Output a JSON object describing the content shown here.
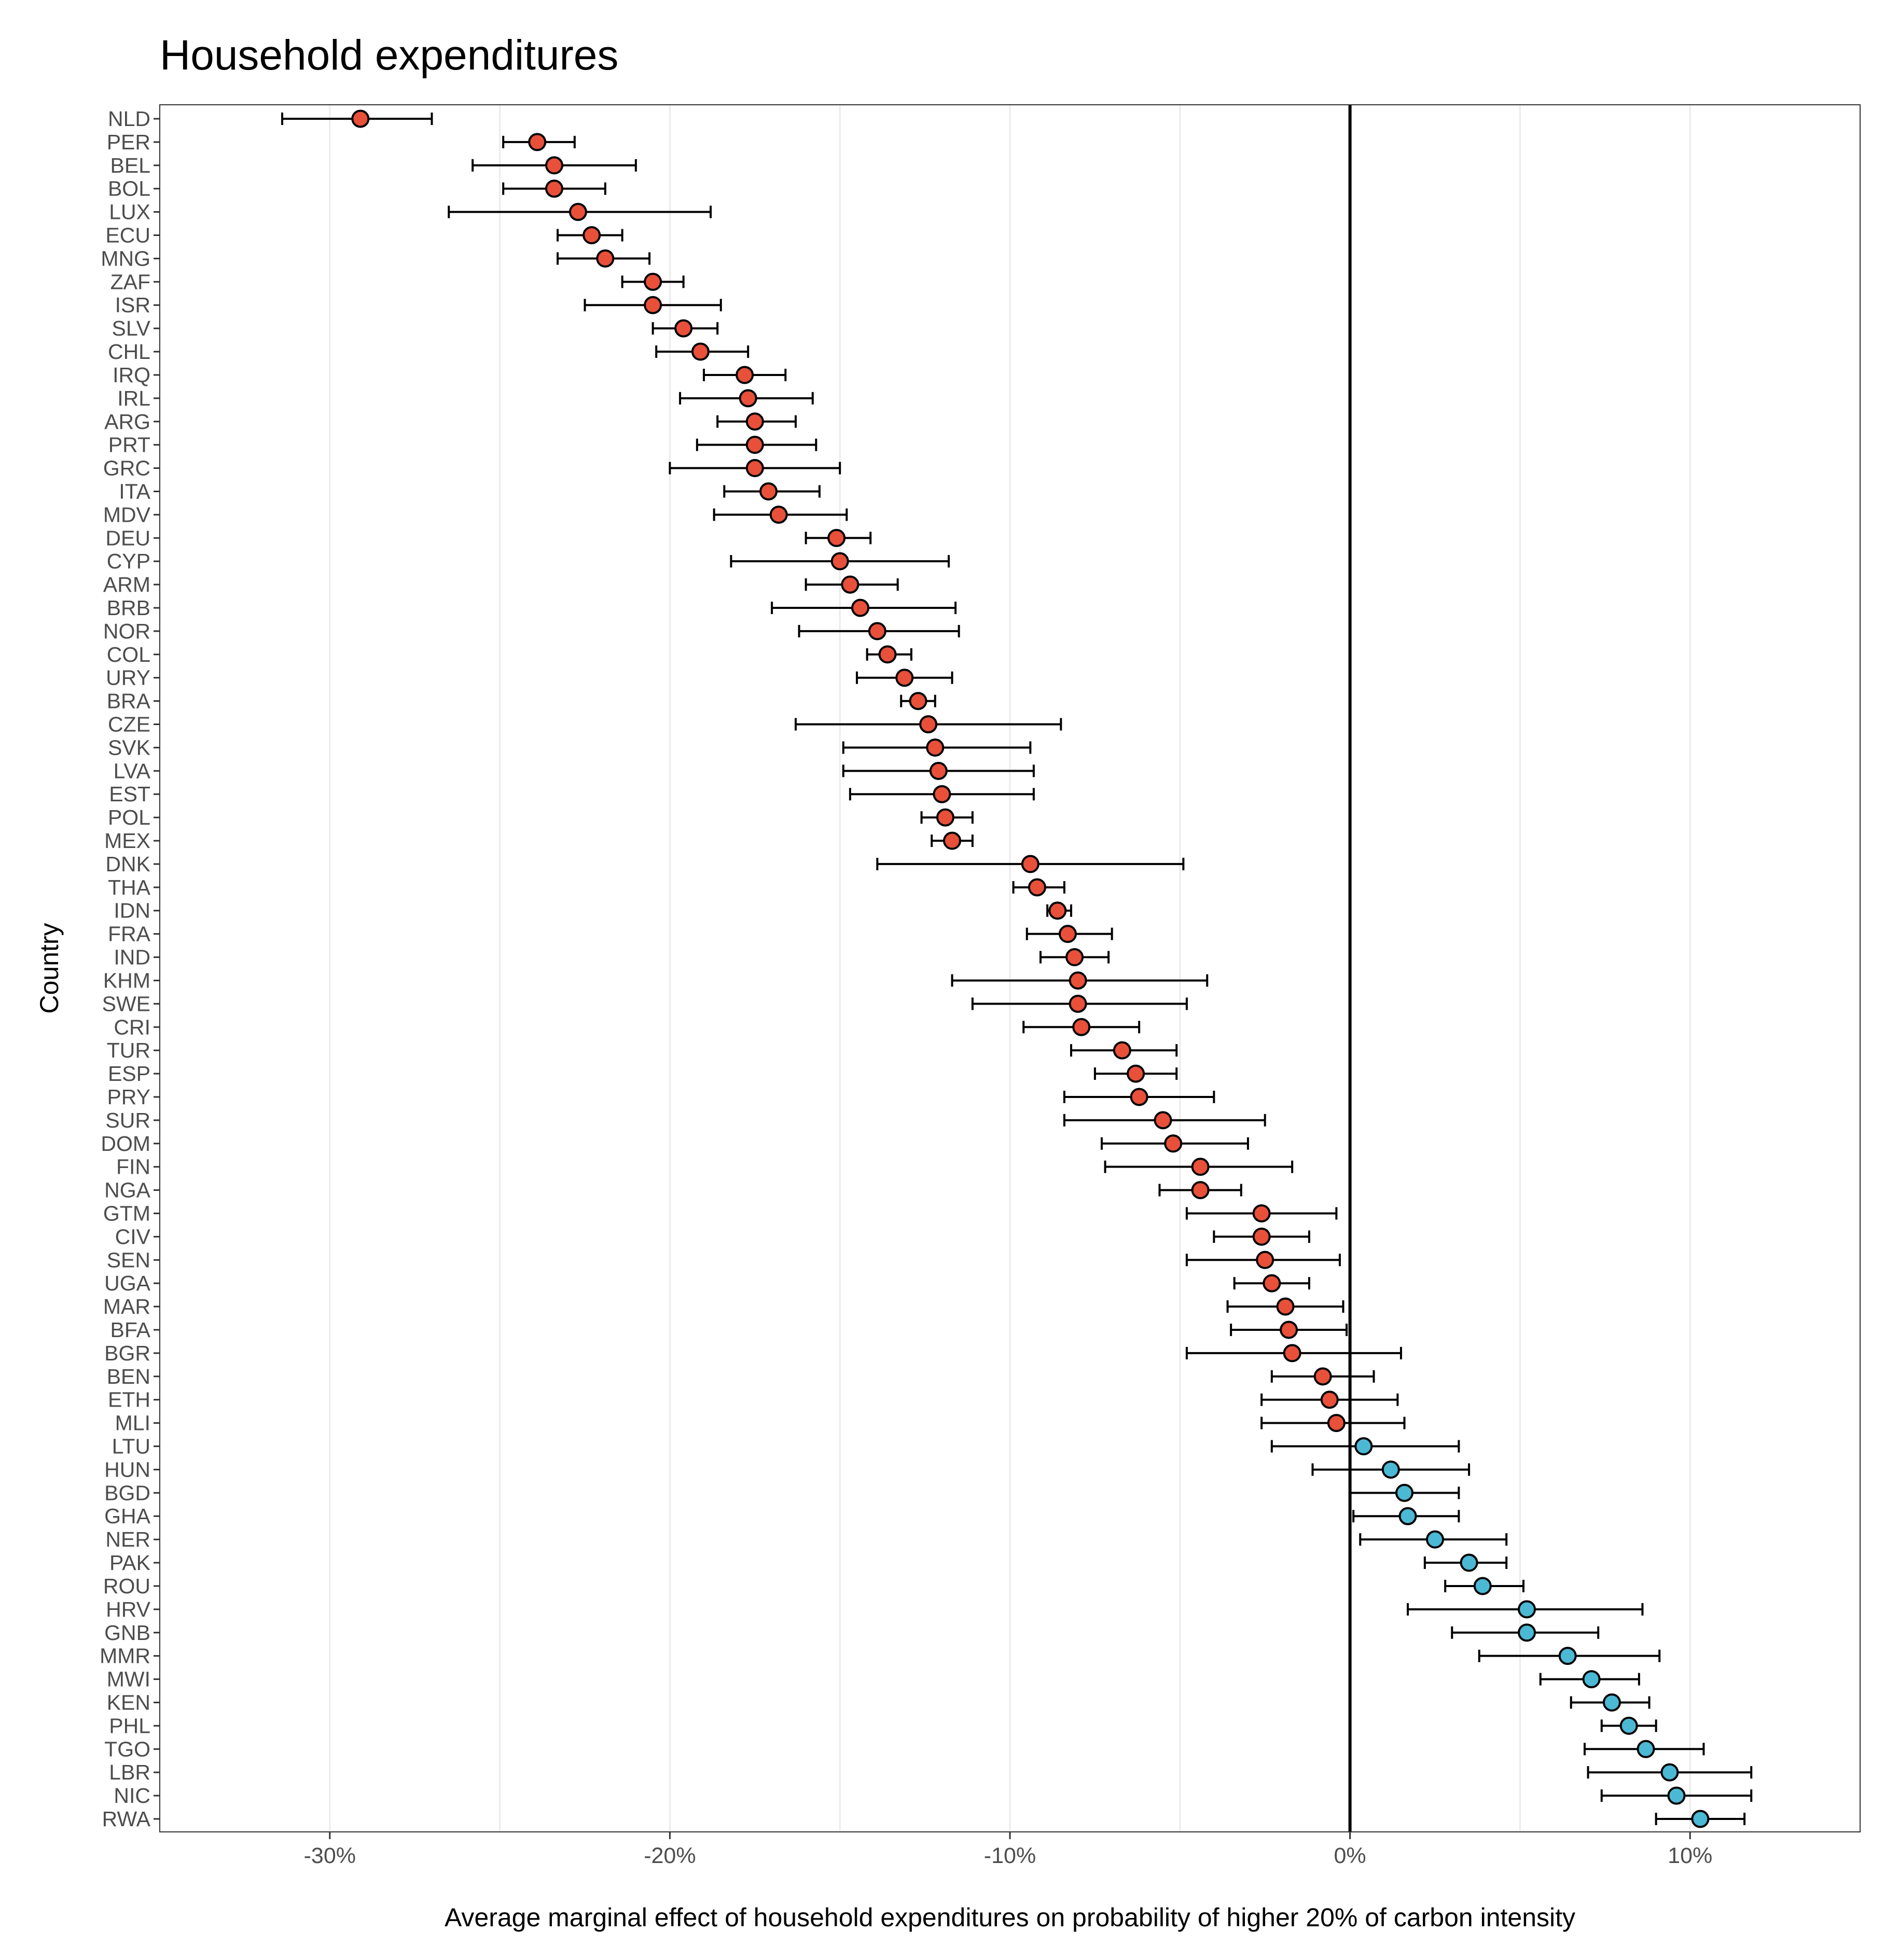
{
  "chart_data": {
    "type": "scatter",
    "title": "Household expenditures",
    "xlabel": "Average marginal effect of household expenditures on probability of higher 20% of carbon intensity",
    "ylabel": "Country",
    "xlim": [
      -35,
      15
    ],
    "x_ticks": [
      -30,
      -20,
      -10,
      0,
      10
    ],
    "x_tick_labels": [
      "-30%",
      "-20%",
      "-10%",
      "0%",
      "10%"
    ],
    "grid": "vertical",
    "reference_line_x": 0,
    "colors": {
      "negative": "#e8503a",
      "positive": "#4bb8d4",
      "errorbar": "#000000",
      "zero_line": "#000000"
    },
    "points": [
      {
        "country": "NLD",
        "estimate": -29.1,
        "low": -31.4,
        "high": -27.0
      },
      {
        "country": "PER",
        "estimate": -23.9,
        "low": -24.9,
        "high": -22.8
      },
      {
        "country": "BEL",
        "estimate": -23.4,
        "low": -25.8,
        "high": -21.0
      },
      {
        "country": "BOL",
        "estimate": -23.4,
        "low": -24.9,
        "high": -21.9
      },
      {
        "country": "LUX",
        "estimate": -22.7,
        "low": -26.5,
        "high": -18.8
      },
      {
        "country": "ECU",
        "estimate": -22.3,
        "low": -23.3,
        "high": -21.4
      },
      {
        "country": "MNG",
        "estimate": -21.9,
        "low": -23.3,
        "high": -20.6
      },
      {
        "country": "ZAF",
        "estimate": -20.5,
        "low": -21.4,
        "high": -19.6
      },
      {
        "country": "ISR",
        "estimate": -20.5,
        "low": -22.5,
        "high": -18.5
      },
      {
        "country": "SLV",
        "estimate": -19.6,
        "low": -20.5,
        "high": -18.6
      },
      {
        "country": "CHL",
        "estimate": -19.1,
        "low": -20.4,
        "high": -17.7
      },
      {
        "country": "IRQ",
        "estimate": -17.8,
        "low": -19.0,
        "high": -16.6
      },
      {
        "country": "IRL",
        "estimate": -17.7,
        "low": -19.7,
        "high": -15.8
      },
      {
        "country": "ARG",
        "estimate": -17.5,
        "low": -18.6,
        "high": -16.3
      },
      {
        "country": "PRT",
        "estimate": -17.5,
        "low": -19.2,
        "high": -15.7
      },
      {
        "country": "GRC",
        "estimate": -17.5,
        "low": -20.0,
        "high": -15.0
      },
      {
        "country": "ITA",
        "estimate": -17.1,
        "low": -18.4,
        "high": -15.6
      },
      {
        "country": "MDV",
        "estimate": -16.8,
        "low": -18.7,
        "high": -14.8
      },
      {
        "country": "DEU",
        "estimate": -15.1,
        "low": -16.0,
        "high": -14.1
      },
      {
        "country": "CYP",
        "estimate": -15.0,
        "low": -18.2,
        "high": -11.8
      },
      {
        "country": "ARM",
        "estimate": -14.7,
        "low": -16.0,
        "high": -13.3
      },
      {
        "country": "BRB",
        "estimate": -14.4,
        "low": -17.0,
        "high": -11.6
      },
      {
        "country": "NOR",
        "estimate": -13.9,
        "low": -16.2,
        "high": -11.5
      },
      {
        "country": "COL",
        "estimate": -13.6,
        "low": -14.2,
        "high": -12.9
      },
      {
        "country": "URY",
        "estimate": -13.1,
        "low": -14.5,
        "high": -11.7
      },
      {
        "country": "BRA",
        "estimate": -12.7,
        "low": -13.2,
        "high": -12.2
      },
      {
        "country": "CZE",
        "estimate": -12.4,
        "low": -16.3,
        "high": -8.5
      },
      {
        "country": "SVK",
        "estimate": -12.2,
        "low": -14.9,
        "high": -9.4
      },
      {
        "country": "LVA",
        "estimate": -12.1,
        "low": -14.9,
        "high": -9.3
      },
      {
        "country": "EST",
        "estimate": -12.0,
        "low": -14.7,
        "high": -9.3
      },
      {
        "country": "POL",
        "estimate": -11.9,
        "low": -12.6,
        "high": -11.1
      },
      {
        "country": "MEX",
        "estimate": -11.7,
        "low": -12.3,
        "high": -11.1
      },
      {
        "country": "DNK",
        "estimate": -9.4,
        "low": -13.9,
        "high": -4.9
      },
      {
        "country": "THA",
        "estimate": -9.2,
        "low": -9.9,
        "high": -8.4
      },
      {
        "country": "IDN",
        "estimate": -8.6,
        "low": -8.9,
        "high": -8.2
      },
      {
        "country": "FRA",
        "estimate": -8.3,
        "low": -9.5,
        "high": -7.0
      },
      {
        "country": "IND",
        "estimate": -8.1,
        "low": -9.1,
        "high": -7.1
      },
      {
        "country": "KHM",
        "estimate": -8.0,
        "low": -11.7,
        "high": -4.2
      },
      {
        "country": "SWE",
        "estimate": -8.0,
        "low": -11.1,
        "high": -4.8
      },
      {
        "country": "CRI",
        "estimate": -7.9,
        "low": -9.6,
        "high": -6.2
      },
      {
        "country": "TUR",
        "estimate": -6.7,
        "low": -8.2,
        "high": -5.1
      },
      {
        "country": "ESP",
        "estimate": -6.3,
        "low": -7.5,
        "high": -5.1
      },
      {
        "country": "PRY",
        "estimate": -6.2,
        "low": -8.4,
        "high": -4.0
      },
      {
        "country": "SUR",
        "estimate": -5.5,
        "low": -8.4,
        "high": -2.5
      },
      {
        "country": "DOM",
        "estimate": -5.2,
        "low": -7.3,
        "high": -3.0
      },
      {
        "country": "FIN",
        "estimate": -4.4,
        "low": -7.2,
        "high": -1.7
      },
      {
        "country": "NGA",
        "estimate": -4.4,
        "low": -5.6,
        "high": -3.2
      },
      {
        "country": "GTM",
        "estimate": -2.6,
        "low": -4.8,
        "high": -0.4
      },
      {
        "country": "CIV",
        "estimate": -2.6,
        "low": -4.0,
        "high": -1.2
      },
      {
        "country": "SEN",
        "estimate": -2.5,
        "low": -4.8,
        "high": -0.3
      },
      {
        "country": "UGA",
        "estimate": -2.3,
        "low": -3.4,
        "high": -1.2
      },
      {
        "country": "MAR",
        "estimate": -1.9,
        "low": -3.6,
        "high": -0.2
      },
      {
        "country": "BFA",
        "estimate": -1.8,
        "low": -3.5,
        "high": -0.1
      },
      {
        "country": "BGR",
        "estimate": -1.7,
        "low": -4.8,
        "high": 1.5
      },
      {
        "country": "BEN",
        "estimate": -0.8,
        "low": -2.3,
        "high": 0.7
      },
      {
        "country": "ETH",
        "estimate": -0.6,
        "low": -2.6,
        "high": 1.4
      },
      {
        "country": "MLI",
        "estimate": -0.4,
        "low": -2.6,
        "high": 1.6
      },
      {
        "country": "LTU",
        "estimate": 0.4,
        "low": -2.3,
        "high": 3.2
      },
      {
        "country": "HUN",
        "estimate": 1.2,
        "low": -1.1,
        "high": 3.5
      },
      {
        "country": "BGD",
        "estimate": 1.6,
        "low": 0.0,
        "high": 3.2
      },
      {
        "country": "GHA",
        "estimate": 1.7,
        "low": 0.1,
        "high": 3.2
      },
      {
        "country": "NER",
        "estimate": 2.5,
        "low": 0.3,
        "high": 4.6
      },
      {
        "country": "PAK",
        "estimate": 3.5,
        "low": 2.2,
        "high": 4.6
      },
      {
        "country": "ROU",
        "estimate": 3.9,
        "low": 2.8,
        "high": 5.1
      },
      {
        "country": "HRV",
        "estimate": 5.2,
        "low": 1.7,
        "high": 8.6
      },
      {
        "country": "GNB",
        "estimate": 5.2,
        "low": 3.0,
        "high": 7.3
      },
      {
        "country": "MMR",
        "estimate": 6.4,
        "low": 3.8,
        "high": 9.1
      },
      {
        "country": "MWI",
        "estimate": 7.1,
        "low": 5.6,
        "high": 8.5
      },
      {
        "country": "KEN",
        "estimate": 7.7,
        "low": 6.5,
        "high": 8.8
      },
      {
        "country": "PHL",
        "estimate": 8.2,
        "low": 7.4,
        "high": 9.0
      },
      {
        "country": "TGO",
        "estimate": 8.7,
        "low": 6.9,
        "high": 10.4
      },
      {
        "country": "LBR",
        "estimate": 9.4,
        "low": 7.0,
        "high": 11.8
      },
      {
        "country": "NIC",
        "estimate": 9.6,
        "low": 7.4,
        "high": 11.8
      },
      {
        "country": "RWA",
        "estimate": 10.3,
        "low": 9.0,
        "high": 11.6
      }
    ]
  }
}
